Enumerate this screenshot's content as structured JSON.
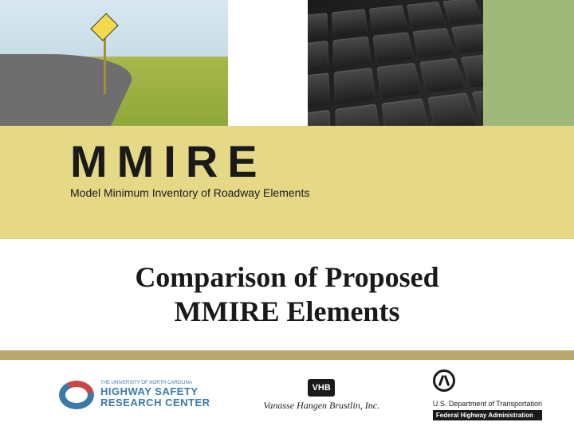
{
  "colors": {
    "banner_bg": "#e5d988",
    "green_panel": "#a0b878",
    "divider": "#b8a870",
    "text_primary": "#1a1a1a",
    "hsrc_blue": "#3a7aa8"
  },
  "hero_images": {
    "left": "highway-curve-with-chevron-sign",
    "right": "closeup-black-keyboard-keys"
  },
  "logo": {
    "acronym": "MMIRE",
    "full_name": "Model Minimum Inventory of Roadway Elements",
    "acronym_fontsize": 56,
    "sub_fontsize": 14
  },
  "title": {
    "line1": "Comparison of Proposed",
    "line2": "MMIRE Elements",
    "fontsize": 36
  },
  "sponsors": {
    "hsrc": {
      "top_line": "THE UNIVERSITY OF NORTH CAROLINA",
      "line1": "HIGHWAY SAFETY",
      "line2": "RESEARCH CENTER"
    },
    "vhb": {
      "box": "VHB",
      "name": "Vanasse Hangen Brustlin, Inc."
    },
    "fhwa": {
      "dept": "U.S. Department of Transportation",
      "agency": "Federal Highway Administration"
    }
  }
}
